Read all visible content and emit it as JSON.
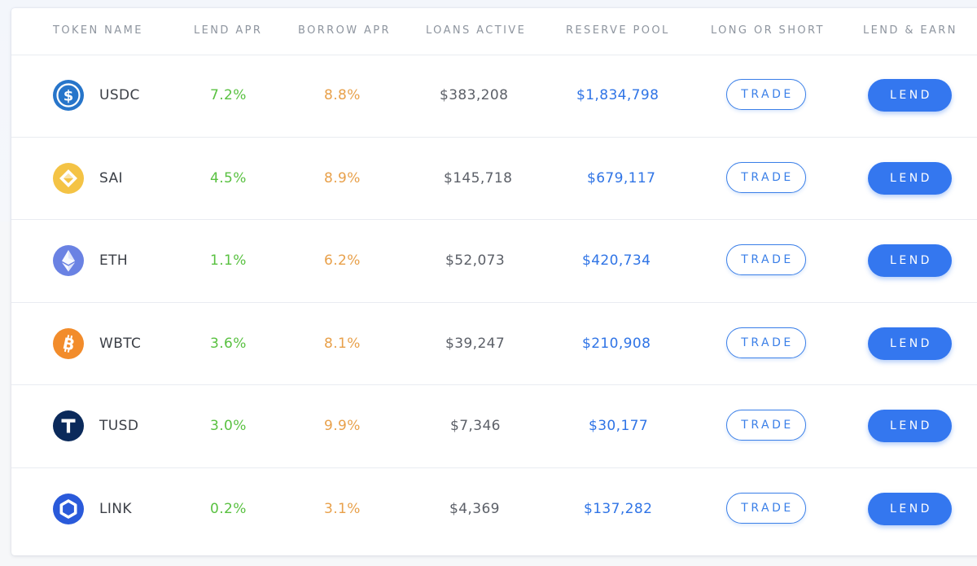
{
  "columns": {
    "token_name": "TOKEN NAME",
    "lend_apr": "LEND APR",
    "borrow_apr": "BORROW APR",
    "loans_active": "LOANS ACTIVE",
    "reserve_pool": "RESERVE POOL",
    "long_or_short": "LONG OR SHORT",
    "lend_and_earn": "LEND & EARN"
  },
  "rows": [
    {
      "token": "USDC",
      "icon": "usdc-icon",
      "lend_apr": "7.2%",
      "borrow_apr": "8.8%",
      "loans_active": "$383,208",
      "reserve_pool": "$1,834,798",
      "trade_label": "TRADE",
      "lend_label": "LEND"
    },
    {
      "token": "SAI",
      "icon": "sai-icon",
      "lend_apr": "4.5%",
      "borrow_apr": "8.9%",
      "loans_active": "$145,718",
      "reserve_pool": "$679,117",
      "trade_label": "TRADE",
      "lend_label": "LEND"
    },
    {
      "token": "ETH",
      "icon": "eth-icon",
      "lend_apr": "1.1%",
      "borrow_apr": "6.2%",
      "loans_active": "$52,073",
      "reserve_pool": "$420,734",
      "trade_label": "TRADE",
      "lend_label": "LEND"
    },
    {
      "token": "WBTC",
      "icon": "wbtc-icon",
      "lend_apr": "3.6%",
      "borrow_apr": "8.1%",
      "loans_active": "$39,247",
      "reserve_pool": "$210,908",
      "trade_label": "TRADE",
      "lend_label": "LEND"
    },
    {
      "token": "TUSD",
      "icon": "tusd-icon",
      "lend_apr": "3.0%",
      "borrow_apr": "9.9%",
      "loans_active": "$7,346",
      "reserve_pool": "$30,177",
      "trade_label": "TRADE",
      "lend_label": "LEND"
    },
    {
      "token": "LINK",
      "icon": "link-icon",
      "lend_apr": "0.2%",
      "borrow_apr": "3.1%",
      "loans_active": "$4,369",
      "reserve_pool": "$137,282",
      "trade_label": "TRADE",
      "lend_label": "LEND"
    }
  ],
  "colors": {
    "lend_apr": "#59c141",
    "borrow_apr": "#e8a04a",
    "reserve_pool": "#2f74e6",
    "accent": "#3477ef"
  }
}
